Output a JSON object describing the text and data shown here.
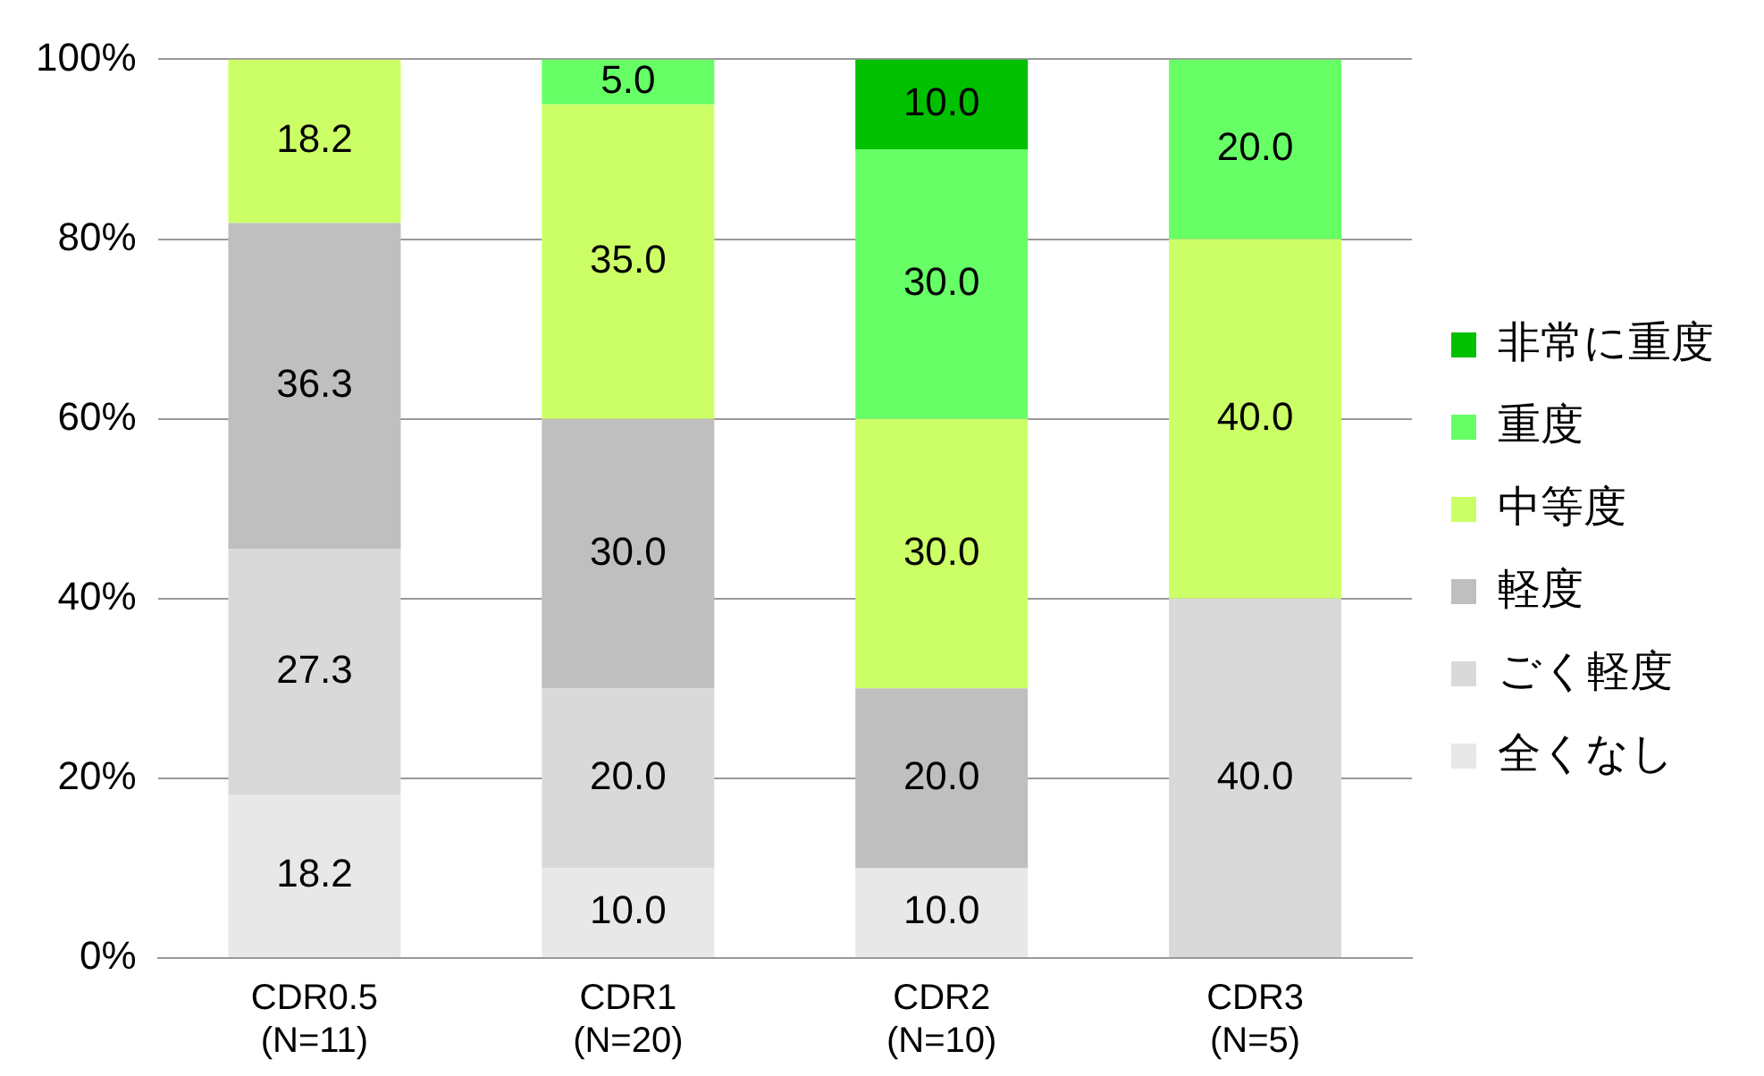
{
  "chart_data": {
    "type": "bar",
    "stacked": true,
    "categories": [
      "CDR0.5\n(N=11)",
      "CDR1\n(N=20)",
      "CDR2\n(N=10)",
      "CDR3\n(N=5)"
    ],
    "series": [
      {
        "name": "全くなし",
        "color": "#e8e8e8",
        "values": [
          18.2,
          10,
          10,
          null
        ],
        "value_labels": [
          "18.2",
          "10.0",
          "10.0",
          null
        ]
      },
      {
        "name": "ごく軽度",
        "color": "#d9d9d9",
        "values": [
          27.3,
          20,
          null,
          40
        ],
        "value_labels": [
          "27.3",
          "20.0",
          null,
          "40.0"
        ]
      },
      {
        "name": "軽度",
        "color": "#bfbfbf",
        "values": [
          36.3,
          30,
          20,
          null
        ],
        "value_labels": [
          "36.3",
          "30.0",
          "20.0",
          null
        ]
      },
      {
        "name": "中等度",
        "color": "#ccff66",
        "values": [
          18.2,
          35,
          30,
          40
        ],
        "value_labels": [
          "18.2",
          "35.0",
          "30.0",
          "40.0"
        ]
      },
      {
        "name": "重度",
        "color": "#66ff66",
        "values": [
          null,
          5,
          30,
          20
        ],
        "value_labels": [
          null,
          "5.0",
          "30.0",
          "20.0"
        ]
      },
      {
        "name": "非常に重度",
        "color": "#00c000",
        "values": [
          null,
          null,
          10,
          null
        ],
        "value_labels": [
          null,
          null,
          "10.0",
          null
        ]
      }
    ],
    "ylim": [
      0,
      100
    ],
    "yticks": [
      {
        "value": 0,
        "label": "0%"
      },
      {
        "value": 20,
        "label": "20%"
      },
      {
        "value": 40,
        "label": "40%"
      },
      {
        "value": 60,
        "label": "60%"
      },
      {
        "value": 80,
        "label": "80%"
      },
      {
        "value": 100,
        "label": "100%"
      }
    ],
    "grid": "y",
    "legend": "right"
  }
}
